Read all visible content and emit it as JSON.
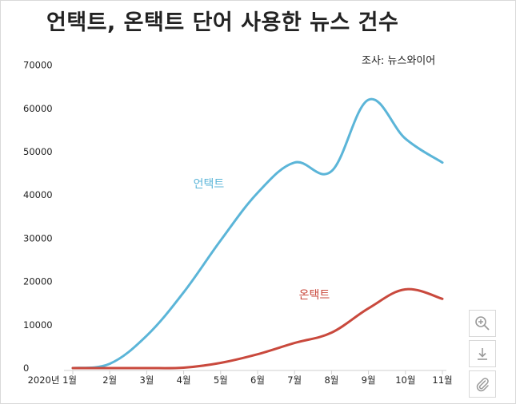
{
  "title": "언택트, 온택트 단어 사용한 뉴스 건수",
  "source_label": "조사: 뉴스와이어",
  "chart_data": {
    "type": "line",
    "title": "언택트, 온택트 단어 사용한 뉴스 건수",
    "categories": [
      "2020년 1월",
      "2월",
      "3월",
      "4월",
      "5월",
      "6월",
      "7월",
      "8월",
      "9월",
      "10월",
      "11월"
    ],
    "ylim": [
      0,
      70000
    ],
    "yticks": [
      0,
      10000,
      20000,
      30000,
      40000,
      50000,
      60000,
      70000
    ],
    "grid": false,
    "series": [
      {
        "name": "언택트",
        "color": "#5bb5d8",
        "values": [
          0,
          1000,
          7500,
          17500,
          29500,
          40500,
          47500,
          45500,
          62000,
          53000,
          47500
        ]
      },
      {
        "name": "온택트",
        "color": "#c9493d",
        "values": [
          0,
          0,
          0,
          100,
          1200,
          3200,
          5800,
          8200,
          13800,
          18200,
          16000
        ]
      }
    ]
  },
  "tools": {
    "zoom": "zoom-in-icon",
    "download": "download-icon",
    "attach": "paperclip-icon"
  }
}
